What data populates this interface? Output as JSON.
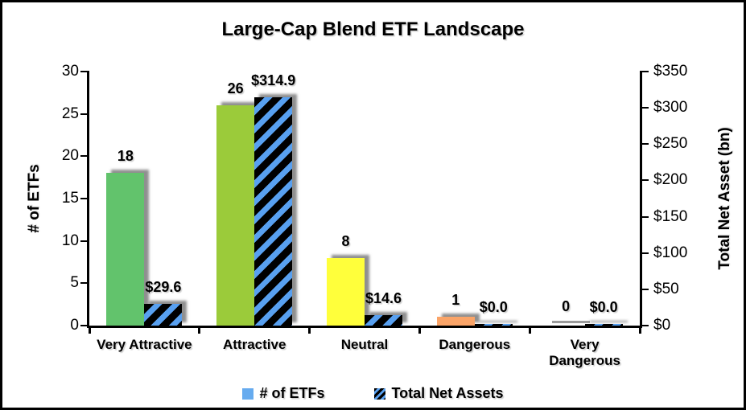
{
  "chart_data": {
    "type": "bar",
    "title": "Large-Cap Blend ETF Landscape",
    "categories": [
      "Very Attractive",
      "Attractive",
      "Neutral",
      "Dangerous",
      "Very Dangerous"
    ],
    "category_label_lines": [
      [
        "Very Attractive"
      ],
      [
        "Attractive"
      ],
      [
        "Neutral"
      ],
      [
        "Dangerous"
      ],
      [
        "Very",
        "Dangerous"
      ]
    ],
    "series": [
      {
        "name": "# of ETFs",
        "axis": "left",
        "values": [
          18,
          26,
          8,
          1,
          0
        ],
        "labels": [
          "18",
          "26",
          "8",
          "1",
          "0"
        ],
        "bar_colors": [
          "#62C36C",
          "#9BCB3A",
          "#FFFF3B",
          "#FAA468",
          "#9B9B9B"
        ]
      },
      {
        "name": "Total Net Assets",
        "axis": "right",
        "values": [
          29.6,
          314.9,
          14.6,
          0.0,
          0.0
        ],
        "labels": [
          "$29.6",
          "$314.9",
          "$14.6",
          "$0.0",
          "$0.0"
        ],
        "pattern": "diagonal-stripes",
        "pattern_colors": [
          "#000000",
          "#58A0F0"
        ]
      }
    ],
    "left_axis": {
      "label": "# of ETFs",
      "min": 0,
      "max": 30,
      "step": 5,
      "ticks": [
        "0",
        "5",
        "10",
        "15",
        "20",
        "25",
        "30"
      ]
    },
    "right_axis": {
      "label": "Total Net Asset (bn)",
      "min": 0,
      "max": 350,
      "step": 50,
      "ticks": [
        "$0",
        "$50",
        "$100",
        "$150",
        "$200",
        "$250",
        "$300",
        "$350"
      ]
    },
    "legend": {
      "position": "bottom",
      "entries": [
        {
          "label": "# of ETFs",
          "swatch_style": "solid",
          "swatch_color": "#66ABEF"
        },
        {
          "label": "Total Net Assets",
          "swatch_style": "hatch"
        }
      ]
    },
    "grid": false,
    "background": "#FFFFFF",
    "border_color": "#000000"
  }
}
